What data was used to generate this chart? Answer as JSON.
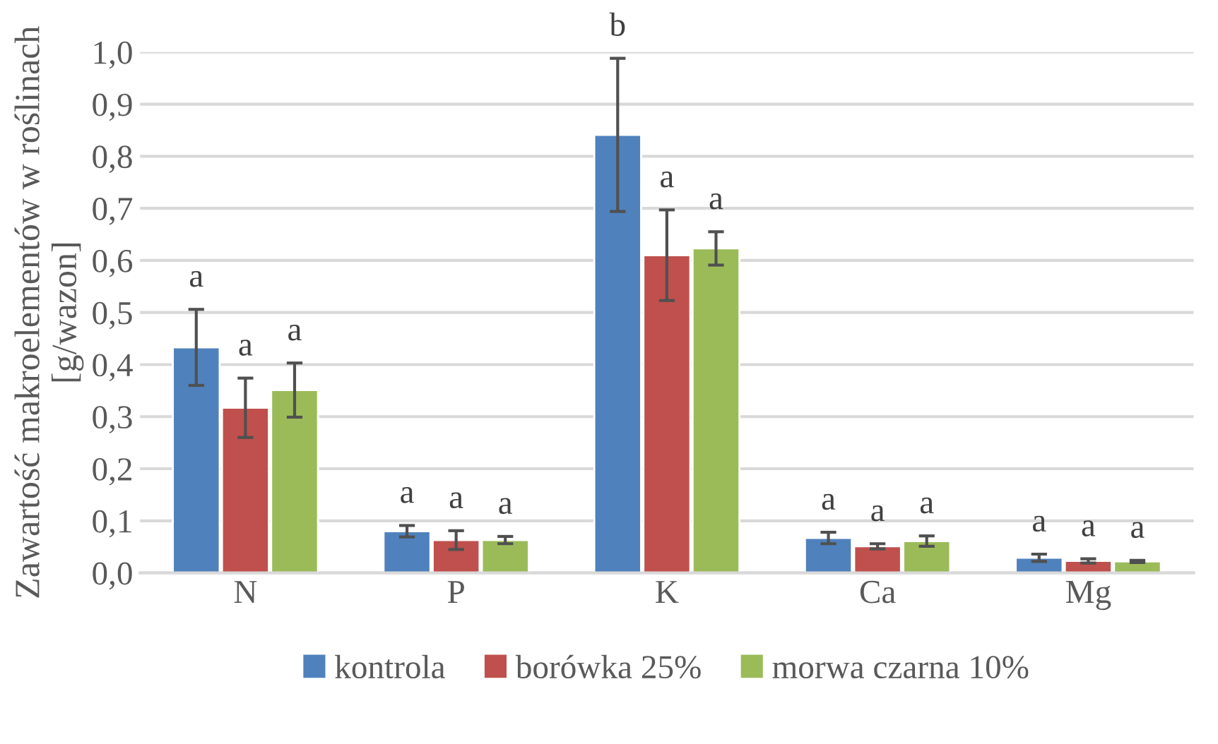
{
  "chart_data": {
    "type": "bar",
    "ylabel": "Zawartość makroelementów w roślinach [g/wazon]",
    "categories": [
      "N",
      "P",
      "K",
      "Ca",
      "Mg"
    ],
    "series": [
      {
        "name": "kontrola",
        "color": "#4f81bd",
        "values": [
          0.433,
          0.08,
          0.841,
          0.067,
          0.029
        ],
        "errors": [
          0.073,
          0.011,
          0.147,
          0.011,
          0.007
        ],
        "value_labels": [
          "a",
          "a",
          "b",
          "a",
          "a"
        ]
      },
      {
        "name": "borówka 25%",
        "color": "#c0504d",
        "values": [
          0.317,
          0.063,
          0.61,
          0.051,
          0.023
        ],
        "errors": [
          0.057,
          0.018,
          0.087,
          0.005,
          0.004
        ],
        "value_labels": [
          "a",
          "a",
          "a",
          "a",
          "a"
        ]
      },
      {
        "name": "morwa czarna 10%",
        "color": "#9bbb59",
        "values": [
          0.351,
          0.063,
          0.623,
          0.061,
          0.022
        ],
        "errors": [
          0.052,
          0.007,
          0.032,
          0.01,
          0.002
        ],
        "value_labels": [
          "a",
          "a",
          "a",
          "a",
          "a"
        ]
      }
    ],
    "ylim": [
      0,
      1.0
    ],
    "yticks": [
      {
        "value": 0,
        "label": "0,0"
      },
      {
        "value": 0.1,
        "label": "0,1"
      },
      {
        "value": 0.2,
        "label": "0,2"
      },
      {
        "value": 0.3,
        "label": "0,3"
      },
      {
        "value": 0.4,
        "label": "0,4"
      },
      {
        "value": 0.5,
        "label": "0,5"
      },
      {
        "value": 0.6,
        "label": "0,6"
      },
      {
        "value": 0.7,
        "label": "0,7"
      },
      {
        "value": 0.8,
        "label": "0,8"
      },
      {
        "value": 0.9,
        "label": "0,9"
      },
      {
        "value": 1.0,
        "label": "1,0"
      }
    ],
    "grid": "y",
    "legend": "bottom"
  }
}
